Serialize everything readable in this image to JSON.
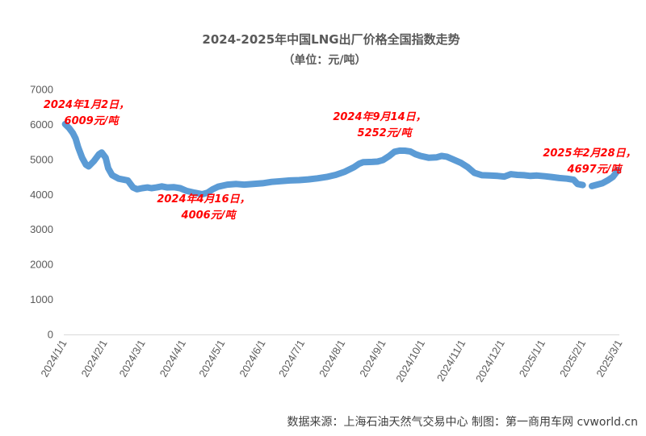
{
  "chart_data": {
    "type": "line",
    "title": "2024-2025年中国LNG出厂价格全国指数走势",
    "subtitle": "（单位：元/吨）",
    "xlabel": "",
    "ylabel": "",
    "ylim": [
      0,
      7000
    ],
    "y_ticks": [
      "0",
      "1000",
      "2000",
      "3000",
      "4000",
      "5000",
      "6000",
      "7000"
    ],
    "x_ticks": [
      "2024/1/1",
      "2024/2/1",
      "2024/3/1",
      "2024/4/1",
      "2024/5/1",
      "2024/6/1",
      "2024/7/1",
      "2024/8/1",
      "2024/9/1",
      "2024/10/1",
      "2024/11/1",
      "2024/12/1",
      "2025/1/1",
      "2025/2/1",
      "2025/3/1"
    ],
    "grid": false,
    "legend": "none",
    "series_color": "#5b9bd5",
    "series": [
      {
        "points": [
          [
            "2024-01-02",
            6009
          ],
          [
            "2024-01-05",
            5900
          ],
          [
            "2024-01-08",
            5750
          ],
          [
            "2024-01-10",
            5600
          ],
          [
            "2024-01-12",
            5350
          ],
          [
            "2024-01-15",
            5050
          ],
          [
            "2024-01-18",
            4850
          ],
          [
            "2024-01-20",
            4800
          ],
          [
            "2024-01-24",
            4950
          ],
          [
            "2024-01-28",
            5150
          ],
          [
            "2024-01-30",
            5200
          ],
          [
            "2024-02-02",
            5050
          ],
          [
            "2024-02-04",
            4750
          ],
          [
            "2024-02-07",
            4550
          ],
          [
            "2024-02-12",
            4450
          ],
          [
            "2024-02-19",
            4400
          ],
          [
            "2024-02-23",
            4200
          ],
          [
            "2024-02-26",
            4150
          ],
          [
            "2024-03-01",
            4180
          ],
          [
            "2024-03-05",
            4200
          ],
          [
            "2024-03-08",
            4180
          ],
          [
            "2024-03-12",
            4200
          ],
          [
            "2024-03-16",
            4230
          ],
          [
            "2024-03-20",
            4200
          ],
          [
            "2024-03-25",
            4210
          ],
          [
            "2024-03-30",
            4180
          ],
          [
            "2024-04-04",
            4100
          ],
          [
            "2024-04-10",
            4050
          ],
          [
            "2024-04-16",
            4006
          ],
          [
            "2024-04-20",
            4050
          ],
          [
            "2024-04-24",
            4150
          ],
          [
            "2024-04-28",
            4220
          ],
          [
            "2024-05-05",
            4280
          ],
          [
            "2024-05-12",
            4300
          ],
          [
            "2024-05-18",
            4280
          ],
          [
            "2024-05-25",
            4300
          ],
          [
            "2024-06-01",
            4320
          ],
          [
            "2024-06-08",
            4360
          ],
          [
            "2024-06-15",
            4380
          ],
          [
            "2024-06-22",
            4400
          ],
          [
            "2024-06-29",
            4410
          ],
          [
            "2024-07-06",
            4430
          ],
          [
            "2024-07-13",
            4460
          ],
          [
            "2024-07-20",
            4500
          ],
          [
            "2024-07-27",
            4560
          ],
          [
            "2024-08-03",
            4650
          ],
          [
            "2024-08-10",
            4780
          ],
          [
            "2024-08-14",
            4880
          ],
          [
            "2024-08-17",
            4920
          ],
          [
            "2024-08-24",
            4930
          ],
          [
            "2024-08-28",
            4940
          ],
          [
            "2024-09-01",
            4980
          ],
          [
            "2024-09-06",
            5100
          ],
          [
            "2024-09-10",
            5220
          ],
          [
            "2024-09-14",
            5252
          ],
          [
            "2024-09-18",
            5250
          ],
          [
            "2024-09-22",
            5230
          ],
          [
            "2024-09-26",
            5150
          ],
          [
            "2024-09-30",
            5100
          ],
          [
            "2024-10-06",
            5050
          ],
          [
            "2024-10-12",
            5060
          ],
          [
            "2024-10-16",
            5100
          ],
          [
            "2024-10-20",
            5080
          ],
          [
            "2024-10-25",
            5000
          ],
          [
            "2024-10-31",
            4900
          ],
          [
            "2024-11-05",
            4780
          ],
          [
            "2024-11-10",
            4620
          ],
          [
            "2024-11-16",
            4550
          ],
          [
            "2024-11-22",
            4540
          ],
          [
            "2024-11-28",
            4530
          ],
          [
            "2024-12-03",
            4510
          ],
          [
            "2024-12-08",
            4580
          ],
          [
            "2024-12-13",
            4560
          ],
          [
            "2024-12-18",
            4550
          ],
          [
            "2024-12-23",
            4530
          ],
          [
            "2024-12-28",
            4540
          ],
          [
            "2025-01-03",
            4520
          ],
          [
            "2025-01-08",
            4500
          ],
          [
            "2025-01-14",
            4470
          ],
          [
            "2025-01-20",
            4450
          ],
          [
            "2025-01-25",
            4420
          ],
          [
            "2025-01-28",
            4300
          ],
          [
            "2025-02-01",
            4270
          ],
          null,
          [
            "2025-02-08",
            4240
          ],
          [
            "2025-02-12",
            4280
          ],
          [
            "2025-02-16",
            4320
          ],
          [
            "2025-02-20",
            4400
          ],
          [
            "2025-02-24",
            4500
          ],
          [
            "2025-02-28",
            4697
          ]
        ]
      }
    ],
    "annotations": [
      {
        "lines": [
          "2024年1月2日，",
          "6009元/吨"
        ],
        "date": "2024-01-02",
        "value": 6009
      },
      {
        "lines": [
          "2024年4月16日，",
          "4006元/吨"
        ],
        "date": "2024-04-16",
        "value": 4006
      },
      {
        "lines": [
          "2024年9月14日，",
          "5252元/吨"
        ],
        "date": "2024-09-14",
        "value": 5252
      },
      {
        "lines": [
          "2025年2月28日，",
          "4697元/吨"
        ],
        "date": "2025-02-28",
        "value": 4697
      }
    ],
    "annotation_color": "#ff0000",
    "source": "数据来源：上海石油天然气交易中心 制图：第一商用车网 cvworld.cn"
  }
}
